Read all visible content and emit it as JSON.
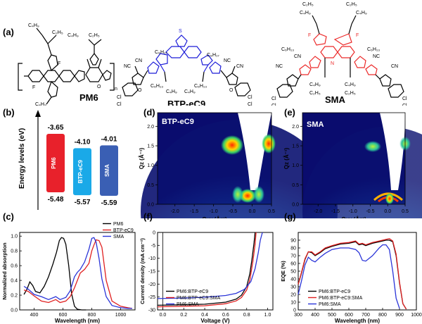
{
  "panel_labels": {
    "a": "(a)",
    "b": "(b)",
    "c": "(c)",
    "d": "(d)",
    "e": "(e)",
    "f": "(f)",
    "g": "(g)"
  },
  "molecules": {
    "pm6": {
      "name": "PM6",
      "subs": [
        "C4H9",
        "C2H5",
        "F",
        "n"
      ]
    },
    "btp": {
      "name": "BTP-eC9",
      "subs": [
        "C8H17",
        "C4H9",
        "C6H13",
        "NC",
        "CN",
        "Cl",
        "O"
      ]
    },
    "sma": {
      "name": "SMA",
      "subs": [
        "C4H9",
        "C2H5",
        "C6H13",
        "F",
        "S",
        "N"
      ]
    }
  },
  "colors": {
    "pm6": "#e8212b",
    "btp": "#1aa9e8",
    "sma": "#3a5fb4",
    "black": "#000000",
    "red": "#e02020",
    "blue": "#2a34d8",
    "btpStructure": "#1c1cd8",
    "smaStructure": "#ec2a2a"
  },
  "energy": {
    "ylabel": "Energy levels (eV)",
    "bars": [
      {
        "name": "PM6",
        "lumo": "-3.65",
        "homo": "-5.48"
      },
      {
        "name": "BTP-eC9",
        "lumo": "-4.10",
        "homo": "-5.57"
      },
      {
        "name": "SMA",
        "lumo": "-4.01",
        "homo": "-5.59"
      }
    ]
  },
  "giwaxs": {
    "xlabel": "Qxy (Å⁻¹)",
    "ylabel": "Qz (Å⁻¹)",
    "xticks": [
      "-2.0",
      "-1.5",
      "-1.0",
      "-0.5",
      "0.0",
      "0.5"
    ],
    "yticks": [
      "0.0",
      "0.5",
      "1.0",
      "1.5",
      "2.0"
    ],
    "panels": [
      {
        "name": "BTP-eC9"
      },
      {
        "name": "SMA"
      }
    ]
  },
  "chart_data": [
    {
      "type": "line",
      "xlabel": "Wavelength (nm)",
      "ylabel": "Normalized absorption",
      "xlim": [
        300,
        1100
      ],
      "ylim": [
        0,
        1.05
      ],
      "xticks": [
        "400",
        "600",
        "800",
        "1000"
      ],
      "yticks": [
        "0.0",
        "0.2",
        "0.4",
        "0.6",
        "0.8",
        "1.0"
      ],
      "legend": "top-right",
      "series": [
        {
          "name": "PM6",
          "x": [
            330,
            350,
            370,
            390,
            410,
            440,
            470,
            500,
            530,
            555,
            575,
            590,
            605,
            620,
            640,
            660,
            680,
            700,
            730,
            760
          ],
          "y": [
            0.21,
            0.28,
            0.38,
            0.33,
            0.25,
            0.23,
            0.32,
            0.45,
            0.62,
            0.78,
            0.94,
            0.98,
            0.97,
            0.89,
            0.6,
            0.22,
            0.05,
            0.01,
            0.0,
            0.0
          ]
        },
        {
          "name": "BTP-eC9",
          "x": [
            330,
            360,
            400,
            450,
            500,
            550,
            580,
            620,
            650,
            680,
            700,
            720,
            750,
            780,
            800,
            815,
            830,
            850,
            870,
            900,
            940,
            1000,
            1050,
            1080
          ],
          "y": [
            0.27,
            0.25,
            0.19,
            0.12,
            0.1,
            0.14,
            0.1,
            0.12,
            0.18,
            0.3,
            0.4,
            0.5,
            0.55,
            0.63,
            0.8,
            0.88,
            0.95,
            0.94,
            0.85,
            0.4,
            0.12,
            0.05,
            0.03,
            0.02
          ]
        },
        {
          "name": "SMA",
          "x": [
            330,
            360,
            400,
            450,
            500,
            550,
            580,
            620,
            650,
            680,
            700,
            720,
            750,
            780,
            800,
            815,
            830,
            850,
            870,
            900,
            940,
            1000,
            1050,
            1080
          ],
          "y": [
            0.32,
            0.28,
            0.21,
            0.18,
            0.14,
            0.18,
            0.14,
            0.17,
            0.26,
            0.45,
            0.51,
            0.55,
            0.65,
            0.82,
            0.97,
            0.98,
            0.92,
            0.7,
            0.42,
            0.18,
            0.06,
            0.03,
            0.02,
            0.02
          ]
        }
      ]
    },
    {
      "type": "line",
      "xlabel": "Voltage (V)",
      "ylabel": "Current density (mA cm⁻²)",
      "xlim": [
        -0.05,
        1.05
      ],
      "ylim": [
        -30,
        0
      ],
      "xticks": [
        "0.0",
        "0.2",
        "0.4",
        "0.6",
        "0.8",
        "1.0"
      ],
      "yticks": [
        "0",
        "-5",
        "-10",
        "-15",
        "-20",
        "-25",
        "-30"
      ],
      "legend": "lower-left",
      "series": [
        {
          "name": "PM6:BTP-eC9",
          "x": [
            -0.05,
            0.2,
            0.4,
            0.6,
            0.7,
            0.75,
            0.8,
            0.83,
            0.85,
            0.87,
            0.88
          ],
          "y": [
            -28.2,
            -28.0,
            -27.8,
            -27.0,
            -25.8,
            -24.3,
            -21.0,
            -16.0,
            -10.5,
            -4.0,
            0
          ]
        },
        {
          "name": "PM6:BTP-eC9:SMA",
          "x": [
            -0.05,
            0.2,
            0.4,
            0.6,
            0.7,
            0.75,
            0.8,
            0.83,
            0.86,
            0.88,
            0.89
          ],
          "y": [
            -28.8,
            -28.6,
            -28.4,
            -27.6,
            -26.5,
            -25.2,
            -22.3,
            -18.5,
            -11.0,
            -4.5,
            0
          ]
        },
        {
          "name": "PM6:SMA",
          "x": [
            -0.05,
            0.2,
            0.4,
            0.6,
            0.7,
            0.78,
            0.84,
            0.88,
            0.91,
            0.93,
            0.95
          ],
          "y": [
            -25.6,
            -25.4,
            -25.1,
            -24.4,
            -23.6,
            -22.0,
            -19.0,
            -14.0,
            -8.0,
            -3.0,
            0
          ]
        }
      ]
    },
    {
      "type": "line",
      "xlabel": "Wavelength (nm)",
      "ylabel": "EQE (%)",
      "xlim": [
        300,
        1000
      ],
      "ylim": [
        0,
        100
      ],
      "xticks": [
        "300",
        "400",
        "500",
        "600",
        "700",
        "800",
        "900",
        "1000"
      ],
      "yticks": [
        "0",
        "10",
        "20",
        "30",
        "40",
        "50",
        "60",
        "70",
        "80",
        "90"
      ],
      "legend": "lower-left",
      "series": [
        {
          "name": "PM6:BTP-eC9",
          "x": [
            300,
            320,
            340,
            360,
            380,
            400,
            430,
            460,
            500,
            550,
            600,
            640,
            660,
            680,
            700,
            740,
            780,
            820,
            840,
            860,
            880,
            900,
            920,
            940
          ],
          "y": [
            33,
            48,
            65,
            75,
            74,
            70,
            74,
            79,
            82,
            85,
            86,
            88,
            84,
            85,
            83,
            86,
            88,
            90,
            90,
            88,
            70,
            35,
            8,
            1
          ]
        },
        {
          "name": "PM6:BTP-eC9:SMA",
          "x": [
            300,
            320,
            340,
            360,
            380,
            400,
            430,
            460,
            500,
            550,
            600,
            640,
            660,
            680,
            700,
            740,
            780,
            820,
            840,
            860,
            880,
            900,
            920,
            940
          ],
          "y": [
            33,
            49,
            66,
            75,
            75,
            71,
            75,
            80,
            83,
            86,
            87,
            89,
            85,
            86,
            84,
            87,
            89,
            91,
            92,
            89,
            72,
            36,
            8,
            1
          ]
        },
        {
          "name": "PM6:SMA",
          "x": [
            300,
            320,
            340,
            360,
            380,
            400,
            430,
            460,
            500,
            550,
            600,
            640,
            660,
            680,
            700,
            740,
            780,
            800,
            820,
            840,
            860,
            880,
            900
          ],
          "y": [
            20,
            38,
            58,
            68,
            64,
            62,
            68,
            73,
            78,
            80,
            80,
            78,
            74,
            64,
            63,
            70,
            80,
            84,
            84,
            78,
            50,
            15,
            2
          ]
        }
      ]
    }
  ]
}
